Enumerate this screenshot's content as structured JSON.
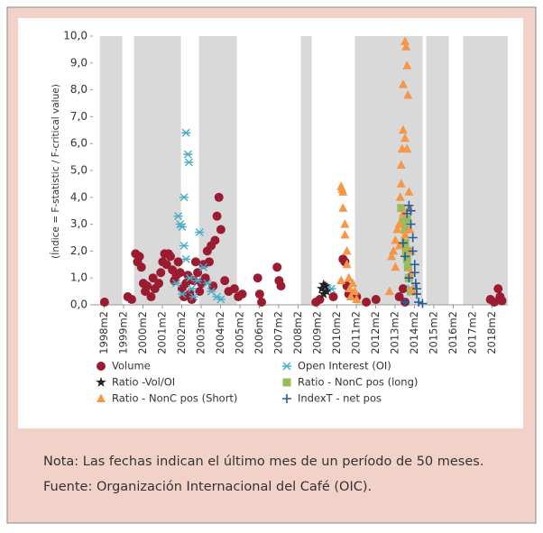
{
  "chart_data": {
    "type": "scatter",
    "y_label": "(Índice = F-statistic / F-critical value)",
    "xlim": [
      1997.5,
      2018.9
    ],
    "xticks": [
      {
        "value": 1998.083,
        "label": "1998m2"
      },
      {
        "value": 1999.083,
        "label": "1999m2"
      },
      {
        "value": 2000.083,
        "label": "2000m2"
      },
      {
        "value": 2001.083,
        "label": "2001m2"
      },
      {
        "value": 2002.083,
        "label": "2002m2"
      },
      {
        "value": 2003.083,
        "label": "2003m2"
      },
      {
        "value": 2004.083,
        "label": "2004m2"
      },
      {
        "value": 2005.083,
        "label": "2005m2"
      },
      {
        "value": 2006.083,
        "label": "2006m2"
      },
      {
        "value": 2007.083,
        "label": "2007m2"
      },
      {
        "value": 2008.083,
        "label": "2008m2"
      },
      {
        "value": 2009.083,
        "label": "2009m2"
      },
      {
        "value": 2010.083,
        "label": "2010m2"
      },
      {
        "value": 2011.083,
        "label": "2011m2"
      },
      {
        "value": 2012.083,
        "label": "2012m2"
      },
      {
        "value": 2013.083,
        "label": "2013m2"
      },
      {
        "value": 2014.083,
        "label": "2014m2"
      },
      {
        "value": 2015.083,
        "label": "2015m2"
      },
      {
        "value": 2016.083,
        "label": "2016m2"
      },
      {
        "value": 2017.083,
        "label": "2017m2"
      },
      {
        "value": 2018.083,
        "label": "2018m2"
      }
    ],
    "ylim": [
      0,
      10
    ],
    "yticks": [
      {
        "value": 0,
        "label": "0,0"
      },
      {
        "value": 1,
        "label": "1,0"
      },
      {
        "value": 2,
        "label": "2,0"
      },
      {
        "value": 3,
        "label": "3,0"
      },
      {
        "value": 4,
        "label": "4,0"
      },
      {
        "value": 5,
        "label": "5,0"
      },
      {
        "value": 6,
        "label": "6,0"
      },
      {
        "value": 7,
        "label": "7,0"
      },
      {
        "value": 8,
        "label": "8,0"
      },
      {
        "value": 9,
        "label": "9,0"
      },
      {
        "value": 10,
        "label": "10,0"
      }
    ],
    "shade_color": "#d9d9d9",
    "shaded_periods": [
      [
        1997.86,
        1999.02
      ],
      [
        1999.62,
        2002.04
      ],
      [
        2002.97,
        2004.93
      ],
      [
        2008.23,
        2008.79
      ],
      [
        2011.02,
        2014.51
      ],
      [
        2014.69,
        2015.86
      ],
      [
        2016.6,
        2018.9
      ]
    ],
    "series": [
      {
        "name": "Volume",
        "color": "#9b1b30",
        "marker": "circle",
        "x": [
          1998.1,
          1999.3,
          1999.5,
          1999.7,
          1999.8,
          1999.9,
          2000.0,
          2000.1,
          2000.2,
          2000.3,
          2000.5,
          2000.6,
          2000.7,
          2000.9,
          2001.0,
          2001.1,
          2001.2,
          2001.3,
          2001.4,
          2001.5,
          2001.6,
          2001.7,
          2001.8,
          2001.9,
          2002.0,
          2002.1,
          2002.2,
          2002.3,
          2002.4,
          2002.5,
          2002.6,
          2002.7,
          2002.8,
          2002.9,
          2003.0,
          2003.1,
          2003.2,
          2003.3,
          2003.4,
          2003.5,
          2003.6,
          2003.7,
          2003.8,
          2003.9,
          2004.0,
          2004.1,
          2004.3,
          2004.5,
          2004.8,
          2005.0,
          2005.2,
          2006.0,
          2006.1,
          2006.2,
          2007.0,
          2007.1,
          2007.2,
          2009.0,
          2009.2,
          2009.9,
          2010.4,
          2010.5,
          2010.6,
          2010.7,
          2011.1,
          2011.6,
          2012.1,
          2013.3,
          2013.5,
          2013.6,
          2018.0,
          2018.2,
          2018.4,
          2018.5,
          2018.6
        ],
        "values": [
          0.1,
          0.3,
          0.2,
          1.9,
          1.6,
          1.8,
          1.4,
          0.8,
          0.5,
          0.7,
          0.3,
          1.0,
          0.6,
          0.8,
          1.2,
          1.6,
          1.9,
          1.5,
          1.9,
          1.8,
          1.3,
          0.9,
          1.1,
          1.6,
          1.2,
          0.6,
          0.3,
          0.8,
          1.1,
          0.4,
          0.2,
          0.9,
          1.6,
          1.2,
          0.5,
          0.8,
          1.5,
          1.0,
          2.0,
          1.6,
          2.2,
          0.7,
          2.4,
          3.3,
          4.0,
          2.8,
          0.9,
          0.5,
          0.6,
          0.3,
          0.4,
          1.0,
          0.4,
          0.1,
          1.4,
          0.9,
          0.7,
          0.1,
          0.2,
          0.3,
          1.7,
          1.6,
          0.7,
          0.4,
          0.3,
          0.1,
          0.2,
          0.3,
          0.6,
          0.1,
          0.2,
          0.1,
          0.6,
          0.3,
          0.15
        ]
      },
      {
        "name": "Open Interest (OI)",
        "color": "#4bacc6",
        "marker": "asterisk",
        "x": [
          2001.9,
          2002.0,
          2002.1,
          2002.2,
          2002.3,
          2002.4,
          2002.45,
          2002.2,
          2002.3,
          2002.5,
          2002.6,
          2002.7,
          2002.9,
          2003.0,
          2003.2,
          2003.4,
          2003.6,
          2003.9,
          2004.1,
          2001.8,
          2002.1,
          2009.6,
          2009.8,
          2013.9
        ],
        "values": [
          3.3,
          3.0,
          2.9,
          4.0,
          6.4,
          5.6,
          5.3,
          2.2,
          1.7,
          1.0,
          0.6,
          0.3,
          0.9,
          2.7,
          1.4,
          0.8,
          0.5,
          0.3,
          0.2,
          0.8,
          0.4,
          0.6,
          0.6,
          0.6
        ]
      },
      {
        "name": "Ratio -Vol/OI",
        "color": "#222222",
        "marker": "star",
        "x": [
          2009.3,
          2009.4,
          2009.5,
          2009.4,
          2009.55
        ],
        "values": [
          0.6,
          0.75,
          0.7,
          0.4,
          0.5
        ]
      },
      {
        "name": "Ratio - NonC pos (long)",
        "color": "#9bbb59",
        "marker": "square",
        "x": [
          2013.4,
          2013.5,
          2013.6,
          2013.65,
          2013.7,
          2013.8,
          2013.9,
          2013.6,
          2013.7,
          2013.75
        ],
        "values": [
          3.6,
          3.1,
          2.8,
          2.0,
          1.7,
          1.0,
          0.5,
          2.3,
          3.2,
          1.4
        ]
      },
      {
        "name": "Ratio - NonC pos (Short)",
        "color": "#f79646",
        "marker": "triangle",
        "x": [
          2010.3,
          2010.35,
          2010.4,
          2010.4,
          2010.5,
          2010.5,
          2010.6,
          2010.6,
          2010.7,
          2010.75,
          2010.8,
          2010.9,
          2011.0,
          2011.1,
          2010.3,
          2012.8,
          2012.9,
          2013.0,
          2013.1,
          2013.2,
          2013.3,
          2013.35,
          2013.4,
          2013.4,
          2013.45,
          2013.5,
          2013.5,
          2013.6,
          2013.65,
          2013.7,
          2013.75,
          2013.6,
          2013.7,
          2013.8,
          2013.8,
          2013.85,
          2013.9,
          2013.9,
          2014.0,
          2013.3,
          2013.5,
          2013.6,
          2014.1,
          2013.1
        ],
        "values": [
          4.4,
          4.3,
          4.2,
          3.6,
          3.0,
          2.6,
          2.0,
          1.5,
          1.0,
          0.6,
          0.3,
          0.8,
          0.5,
          0.2,
          0.9,
          0.5,
          1.8,
          2.0,
          2.4,
          2.8,
          3.0,
          4.0,
          4.5,
          5.2,
          5.8,
          6.5,
          8.2,
          9.8,
          9.6,
          8.9,
          7.8,
          6.2,
          5.8,
          4.2,
          3.6,
          2.8,
          2.0,
          1.2,
          0.6,
          2.2,
          3.4,
          2.6,
          0.5,
          1.4
        ]
      },
      {
        "name": "IndexT - net pos",
        "color": "#1f5fa0",
        "marker": "plus",
        "x": [
          2013.5,
          2013.6,
          2013.7,
          2013.8,
          2013.9,
          2013.9,
          2014.0,
          2014.0,
          2014.1,
          2014.1,
          2014.15,
          2014.2,
          2014.2,
          2014.3,
          2013.6,
          2013.8,
          2014.5
        ],
        "values": [
          2.3,
          1.8,
          3.4,
          3.7,
          3.5,
          3.0,
          2.5,
          2.0,
          1.5,
          1.2,
          0.8,
          0.6,
          0.4,
          0.1,
          0.1,
          1.0,
          0.05
        ]
      }
    ]
  },
  "notes": [
    "Nota: Las fechas indican el último mes de un período de 50 meses.",
    "Fuente: Organización Internacional del Café (OIC)."
  ]
}
